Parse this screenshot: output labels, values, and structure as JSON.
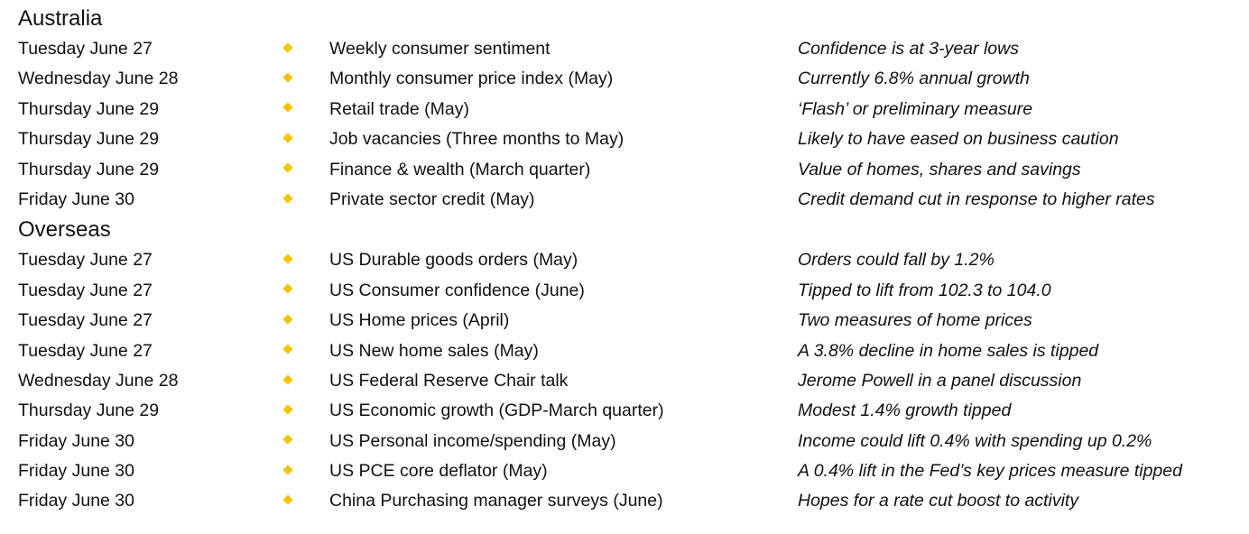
{
  "sections": [
    {
      "heading": "Australia",
      "rows": [
        {
          "date": "Tuesday June 27",
          "event": "Weekly consumer sentiment",
          "note": "Confidence is at 3-year lows"
        },
        {
          "date": "Wednesday June 28",
          "event": "Monthly consumer price index (May)",
          "note": "Currently 6.8% annual growth"
        },
        {
          "date": "Thursday June 29",
          "event": "Retail trade (May)",
          "note": "‘Flash’ or preliminary measure"
        },
        {
          "date": "Thursday June 29",
          "event": "Job vacancies (Three months to May)",
          "note": "Likely to have eased on business caution"
        },
        {
          "date": "Thursday June 29",
          "event": "Finance & wealth (March quarter)",
          "note": "Value of homes, shares and savings"
        },
        {
          "date": "Friday June 30",
          "event": "Private sector credit (May)",
          "note": "Credit demand cut in response to higher rates"
        }
      ]
    },
    {
      "heading": "Overseas",
      "rows": [
        {
          "date": "Tuesday June 27",
          "event": "US Durable goods orders (May)",
          "note": "Orders could fall by 1.2%"
        },
        {
          "date": "Tuesday June 27",
          "event": "US Consumer confidence (June)",
          "note": "Tipped to lift from 102.3 to 104.0"
        },
        {
          "date": "Tuesday June 27",
          "event": "US Home prices (April)",
          "note": "Two measures of home prices"
        },
        {
          "date": "Tuesday June 27",
          "event": "US New home sales (May)",
          "note": "A 3.8% decline in home sales is tipped"
        },
        {
          "date": "Wednesday June 28",
          "event": "US Federal Reserve Chair talk",
          "note": "Jerome Powell in a panel discussion"
        },
        {
          "date": "Thursday June 29",
          "event": "US Economic growth (GDP-March quarter)",
          "note": "Modest 1.4% growth tipped"
        },
        {
          "date": "Friday June 30",
          "event": "US Personal income/spending (May)",
          "note": "Income could lift 0.4% with spending up 0.2%"
        },
        {
          "date": "Friday June 30",
          "event": "US PCE core deflator (May)",
          "note": "A 0.4% lift in the Fed’s key prices measure tipped"
        },
        {
          "date": "Friday June 30",
          "event": "China Purchasing manager surveys (June)",
          "note": "Hopes for a rate cut boost to activity"
        }
      ]
    }
  ],
  "colors": {
    "bullet": "#f5c400",
    "text": "#111111",
    "background": "#ffffff"
  },
  "icons": {
    "bullet": "diamond-bullet-icon"
  }
}
